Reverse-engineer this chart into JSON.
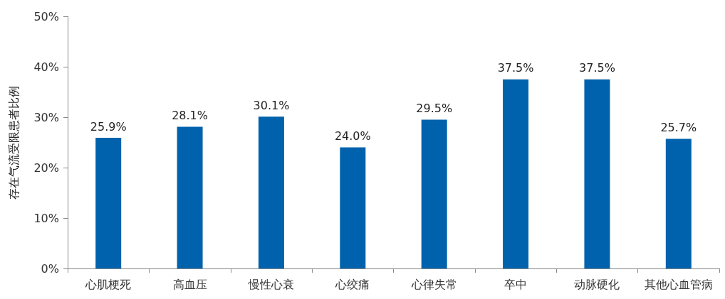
{
  "chart_data": {
    "type": "bar",
    "ylabel": "存在气流受限患者比例",
    "categories": [
      "心肌梗死",
      "高血压",
      "慢性心衰",
      "心绞痛",
      "心律失常",
      "卒中",
      "动脉硬化",
      "其他心血管病"
    ],
    "values": [
      25.9,
      28.1,
      30.1,
      24.0,
      29.5,
      37.5,
      37.5,
      25.7
    ],
    "value_labels": [
      "25.9%",
      "28.1%",
      "30.1%",
      "24.0%",
      "29.5%",
      "37.5%",
      "37.5%",
      "25.7%"
    ],
    "color": "#0062ac",
    "ylim": [
      0,
      50
    ],
    "yticks": [
      {
        "value": 0,
        "label": "0%"
      },
      {
        "value": 10,
        "label": "10%"
      },
      {
        "value": 20,
        "label": "20%"
      },
      {
        "value": 30,
        "label": "30%"
      },
      {
        "value": 40,
        "label": "40%"
      },
      {
        "value": 50,
        "label": "50%"
      }
    ],
    "grid": false
  }
}
